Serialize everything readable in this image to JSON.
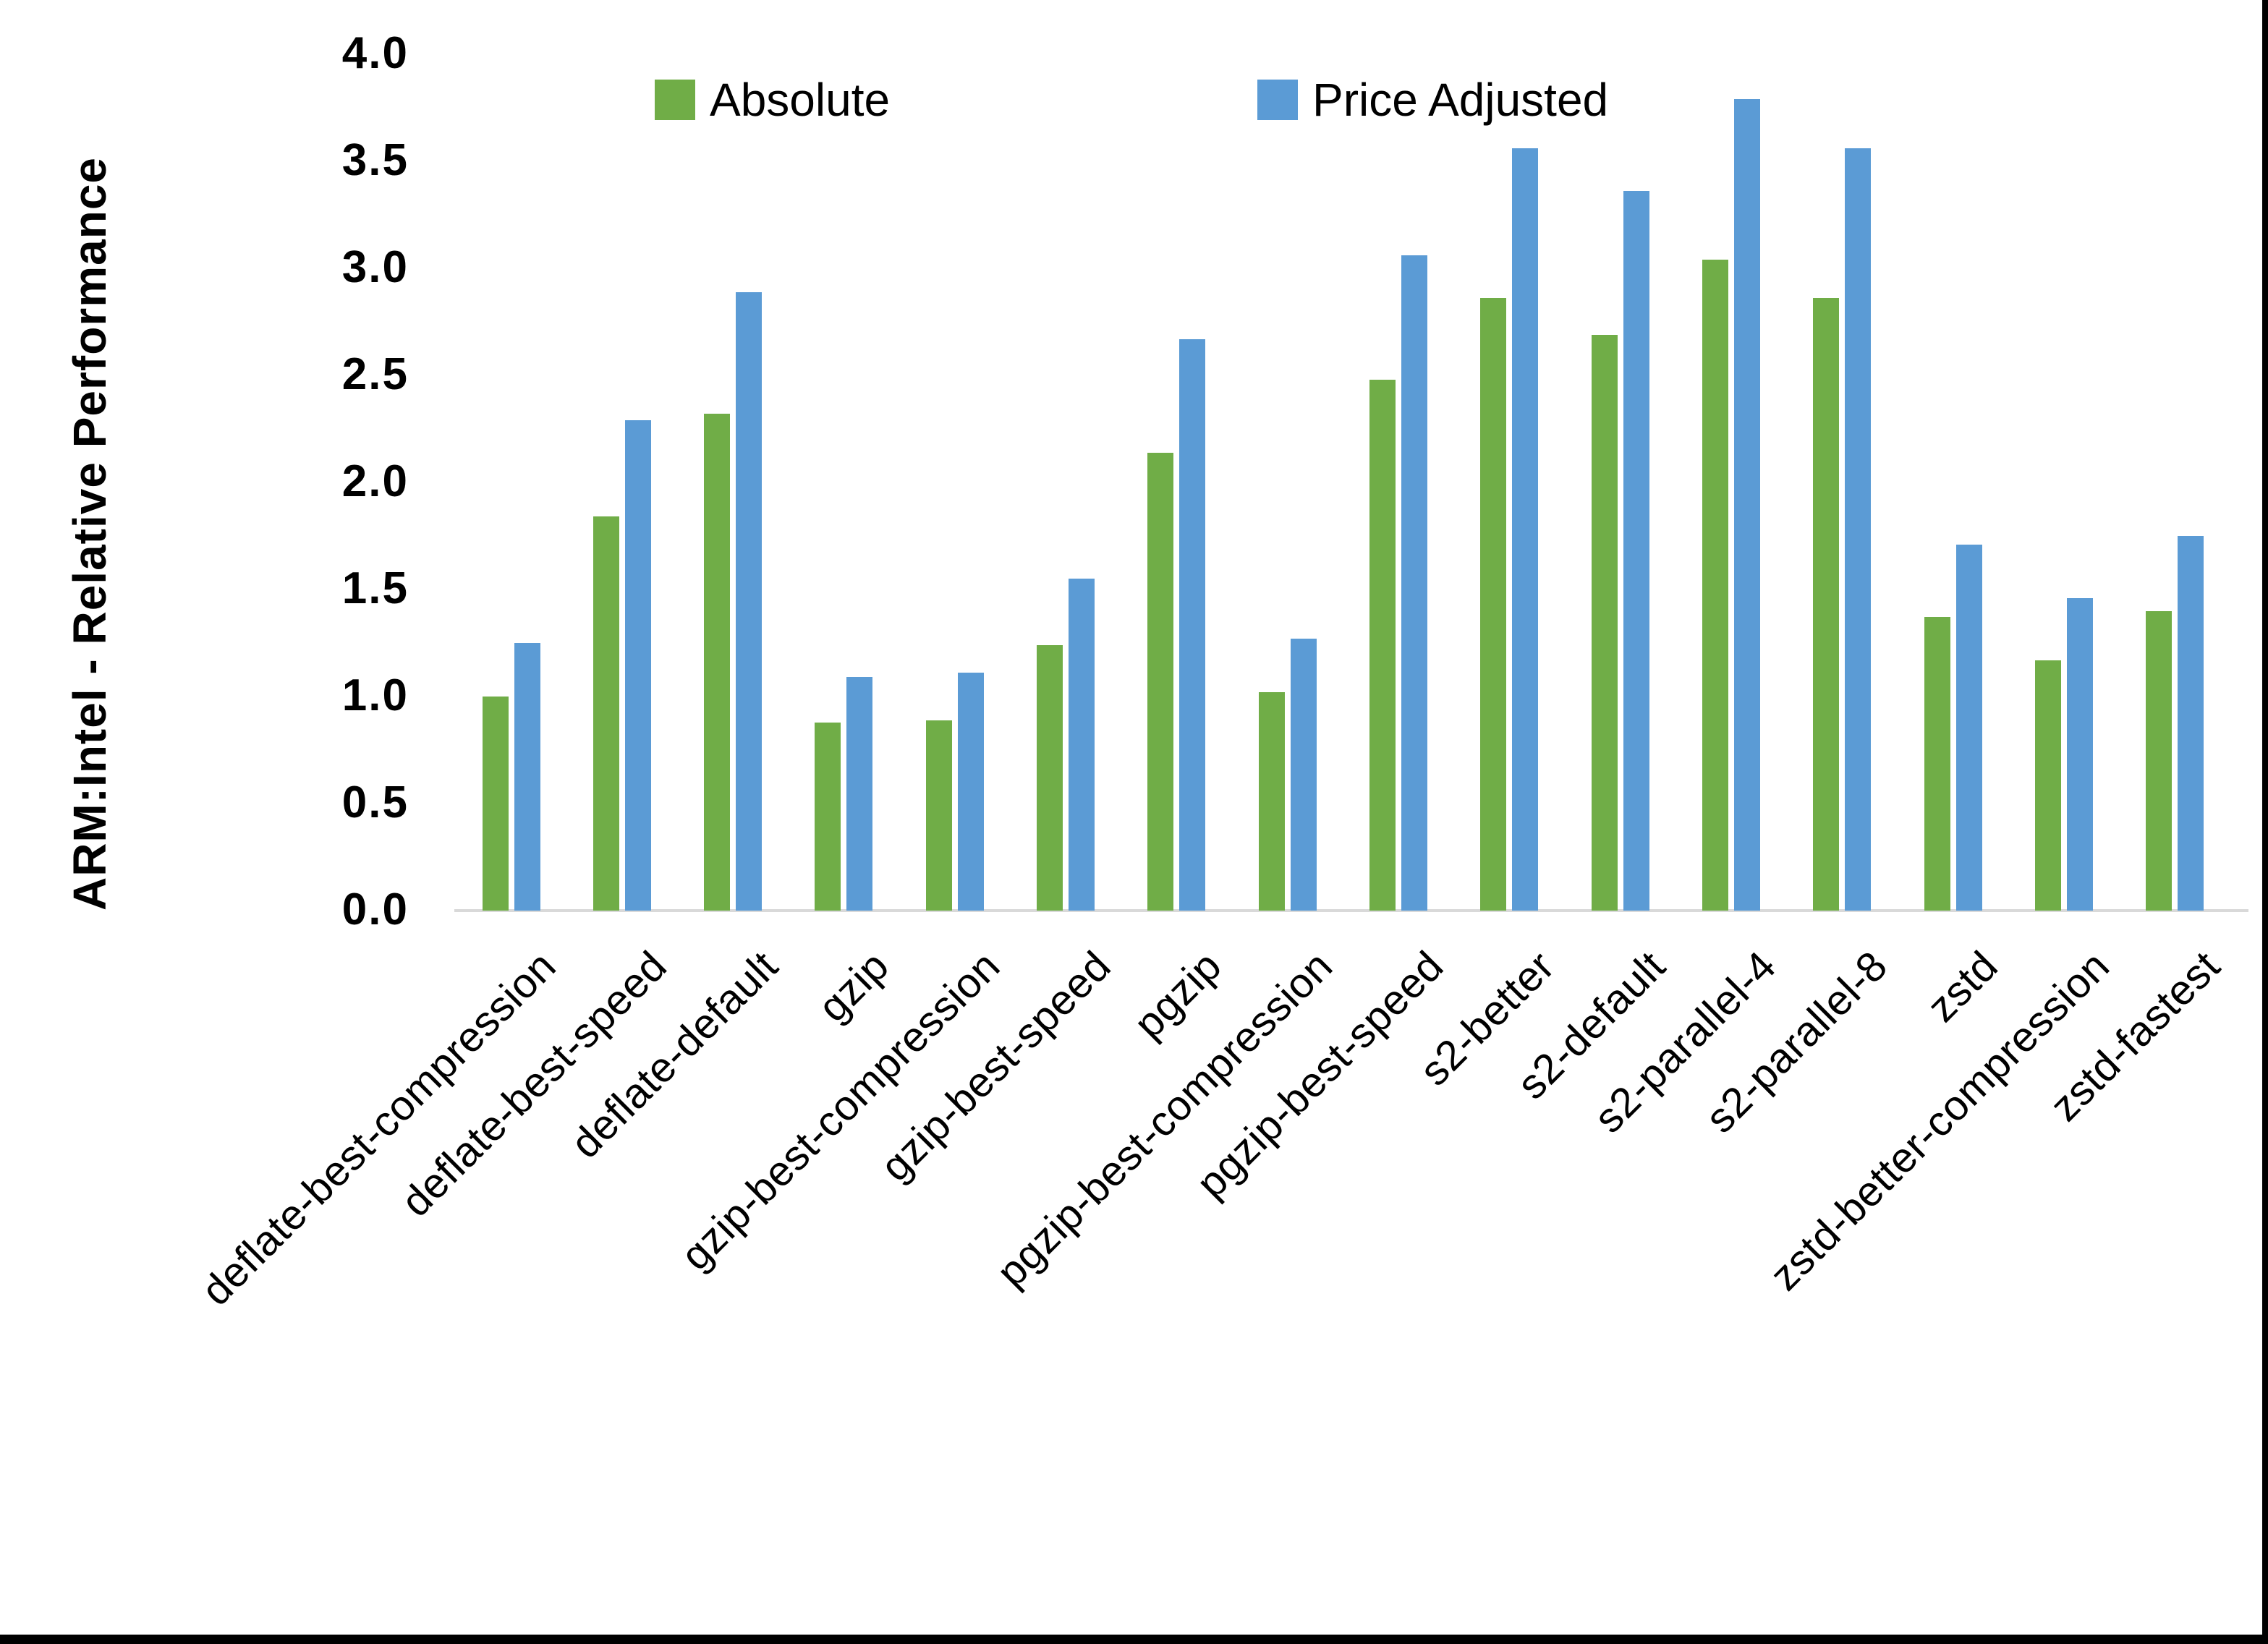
{
  "chart_data": {
    "type": "bar",
    "title": "",
    "ylabel": "ARM:Intel - Relative Performance",
    "xlabel": "",
    "ylim": [
      0.0,
      4.0
    ],
    "ytick_step": 0.5,
    "yticks": [
      "0.0",
      "0.5",
      "1.0",
      "1.5",
      "2.0",
      "2.5",
      "3.0",
      "3.5",
      "4.0"
    ],
    "grid": false,
    "legend_position": "top-center",
    "categories": [
      "deflate-best-compression",
      "deflate-best-speed",
      "deflate-default",
      "gzip",
      "gzip-best-compression",
      "gzip-best-speed",
      "pgzip",
      "pgzip-best-compression",
      "pgzip-best-speed",
      "s2-better",
      "s2-default",
      "s2-parallel-4",
      "s2-parallel-8",
      "zstd",
      "zstd-better-compression",
      "zstd-fastest"
    ],
    "series": [
      {
        "name": "Absolute",
        "color": "#70AD47",
        "values": [
          1.0,
          1.84,
          2.32,
          0.88,
          0.89,
          1.24,
          2.14,
          1.02,
          2.48,
          2.86,
          2.69,
          3.04,
          2.86,
          1.37,
          1.17,
          1.4
        ]
      },
      {
        "name": "Price Adjusted",
        "color": "#5B9BD5",
        "values": [
          1.25,
          2.29,
          2.89,
          1.09,
          1.11,
          1.55,
          2.67,
          1.27,
          3.06,
          3.56,
          3.36,
          3.79,
          3.56,
          1.71,
          1.46,
          1.75
        ]
      }
    ]
  },
  "colors": {
    "axis_line": "#D9D9D9",
    "text": "#000000",
    "background": "#FFFFFF",
    "screen_edge": "#000000"
  }
}
